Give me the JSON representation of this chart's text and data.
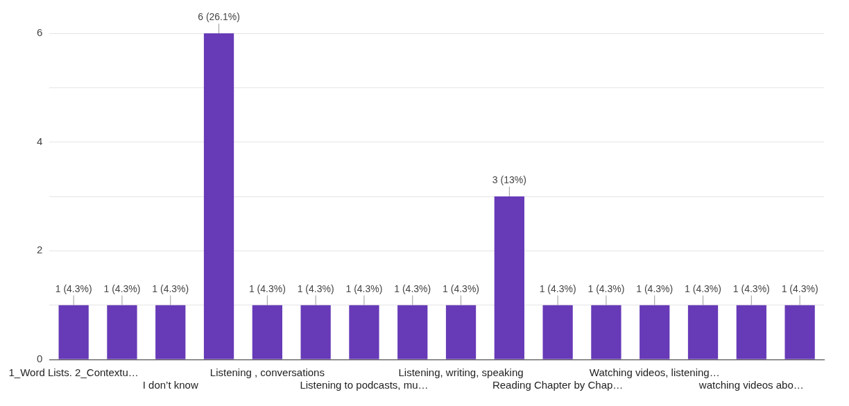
{
  "chart_data": {
    "type": "bar",
    "categories": [
      "1_Word Lists. 2_Contextu…",
      null,
      "I don’t know",
      null,
      "Listening , conversations",
      null,
      "Listening to podcasts, mu…",
      null,
      "Listening, writing, speaking",
      null,
      "Reading Chapter by Chap…",
      null,
      "Watching videos, listening…",
      null,
      "watching videos abo…",
      null
    ],
    "values": [
      1,
      1,
      1,
      6,
      1,
      1,
      1,
      1,
      1,
      3,
      1,
      1,
      1,
      1,
      1,
      1
    ],
    "value_labels": [
      "1 (4.3%)",
      "1 (4.3%)",
      "1 (4.3%)",
      "6 (26.1%)",
      "1 (4.3%)",
      "1 (4.3%)",
      "1 (4.3%)",
      "1 (4.3%)",
      "1 (4.3%)",
      "3 (13%)",
      "1 (4.3%)",
      "1 (4.3%)",
      "1 (4.3%)",
      "1 (4.3%)",
      "1 (4.3%)",
      "1 (4.3%)"
    ],
    "color": "#673ab7",
    "ylim": [
      0,
      6
    ],
    "yticks": [
      0,
      {
        "value": 1,
        "label": null
      },
      2,
      {
        "value": 3,
        "label": null
      },
      4,
      {
        "value": 5,
        "label": null
      },
      6
    ],
    "grid": "y",
    "legend": false
  }
}
